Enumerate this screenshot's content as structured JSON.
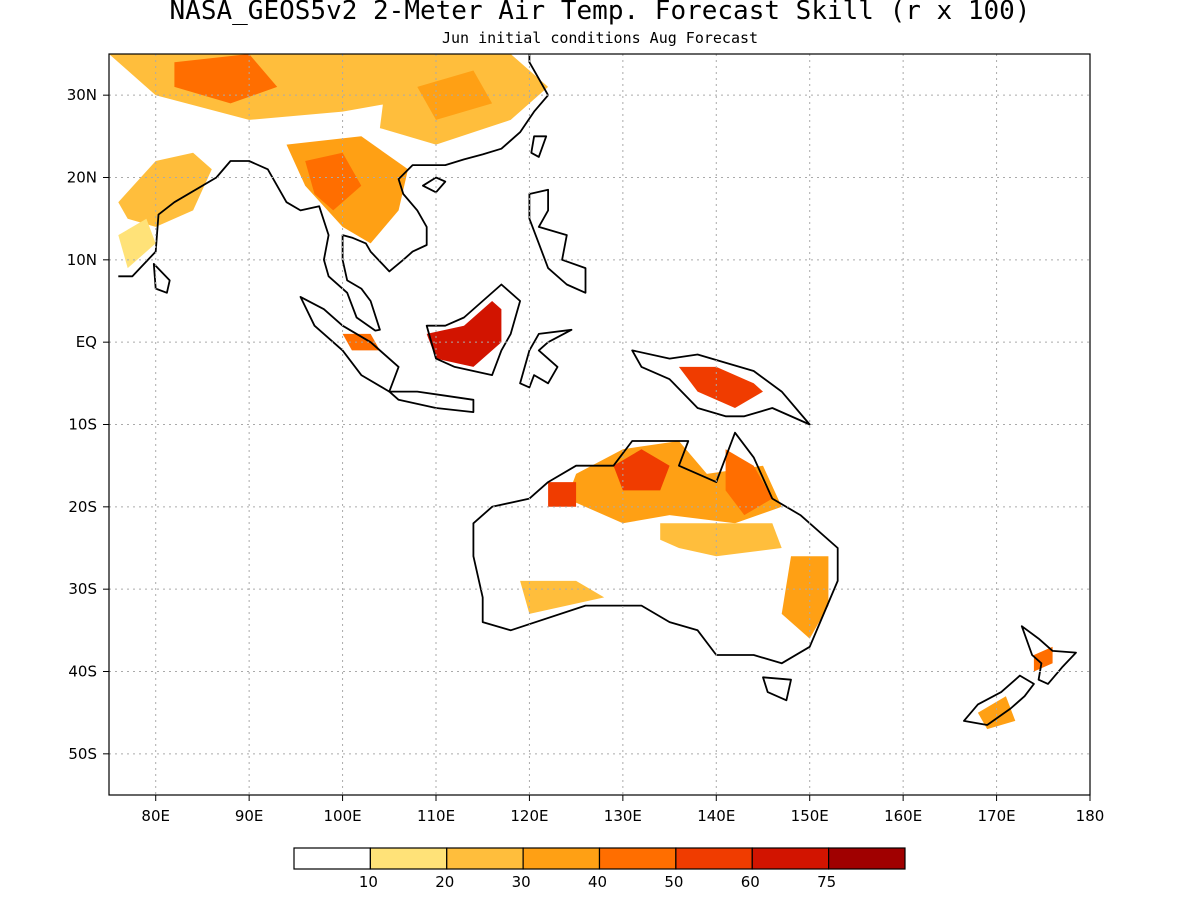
{
  "title": "NASA_GEOS5v2 2-Meter Air Temp. Forecast Skill (r x 100)",
  "subtitle": "Jun initial conditions  Aug Forecast",
  "map": {
    "lon_range": [
      75,
      180
    ],
    "lat_range": [
      -55,
      35
    ],
    "x_ticks": [
      {
        "lon": 80,
        "label": "80E"
      },
      {
        "lon": 90,
        "label": "90E"
      },
      {
        "lon": 100,
        "label": "100E"
      },
      {
        "lon": 110,
        "label": "110E"
      },
      {
        "lon": 120,
        "label": "120E"
      },
      {
        "lon": 130,
        "label": "130E"
      },
      {
        "lon": 140,
        "label": "140E"
      },
      {
        "lon": 150,
        "label": "150E"
      },
      {
        "lon": 160,
        "label": "160E"
      },
      {
        "lon": 170,
        "label": "170E"
      },
      {
        "lon": 180,
        "label": "180"
      }
    ],
    "y_ticks": [
      {
        "lat": 30,
        "label": "30N"
      },
      {
        "lat": 20,
        "label": "20N"
      },
      {
        "lat": 10,
        "label": "10N"
      },
      {
        "lat": 0,
        "label": "EQ"
      },
      {
        "lat": -10,
        "label": "10S"
      },
      {
        "lat": -20,
        "label": "20S"
      },
      {
        "lat": -30,
        "label": "30S"
      },
      {
        "lat": -40,
        "label": "40S"
      },
      {
        "lat": -50,
        "label": "50S"
      }
    ],
    "grid": "dotted"
  },
  "colorbar": {
    "colors": [
      "#ffffff",
      "#ffe278",
      "#ffbe3c",
      "#ffa014",
      "#ff6e00",
      "#f03c00",
      "#d21400",
      "#a00000"
    ],
    "labels": [
      "10",
      "20",
      "30",
      "40",
      "50",
      "60",
      "75"
    ]
  },
  "regions": [
    {
      "name": "india",
      "level": 2,
      "poly": [
        [
          76,
          17
        ],
        [
          80,
          22
        ],
        [
          84,
          23
        ],
        [
          86,
          21
        ],
        [
          84,
          16
        ],
        [
          80,
          14
        ],
        [
          77,
          15
        ]
      ]
    },
    {
      "name": "india-south",
      "level": 1,
      "poly": [
        [
          76,
          13
        ],
        [
          79,
          15
        ],
        [
          80,
          12
        ],
        [
          77,
          9
        ]
      ]
    },
    {
      "name": "tibet-north",
      "level": 2,
      "poly": [
        [
          75,
          35
        ],
        [
          105,
          35
        ],
        [
          110,
          30
        ],
        [
          100,
          28
        ],
        [
          90,
          27
        ],
        [
          80,
          30
        ]
      ]
    },
    {
      "name": "tibet-hot",
      "level": 4,
      "poly": [
        [
          82,
          34
        ],
        [
          90,
          35
        ],
        [
          93,
          31
        ],
        [
          88,
          29
        ],
        [
          82,
          31
        ]
      ]
    },
    {
      "name": "china-east",
      "level": 2,
      "poly": [
        [
          105,
          35
        ],
        [
          118,
          35
        ],
        [
          122,
          31
        ],
        [
          118,
          27
        ],
        [
          110,
          24
        ],
        [
          104,
          26
        ]
      ]
    },
    {
      "name": "china-east-core",
      "level": 3,
      "poly": [
        [
          108,
          31
        ],
        [
          114,
          33
        ],
        [
          116,
          29
        ],
        [
          110,
          27
        ]
      ]
    },
    {
      "name": "indochina",
      "level": 3,
      "poly": [
        [
          94,
          24
        ],
        [
          102,
          25
        ],
        [
          107,
          21
        ],
        [
          106,
          16
        ],
        [
          103,
          12
        ],
        [
          100,
          14
        ],
        [
          96,
          19
        ]
      ]
    },
    {
      "name": "indochina-core",
      "level": 4,
      "poly": [
        [
          96,
          22
        ],
        [
          100,
          23
        ],
        [
          102,
          19
        ],
        [
          99,
          16
        ],
        [
          97,
          18
        ]
      ]
    },
    {
      "name": "borneo",
      "level": 6,
      "poly": [
        [
          109,
          1
        ],
        [
          113,
          2
        ],
        [
          116,
          5
        ],
        [
          117,
          4
        ],
        [
          117,
          0
        ],
        [
          114,
          -3
        ],
        [
          110,
          -2
        ]
      ]
    },
    {
      "name": "sumatra",
      "level": 4,
      "poly": [
        [
          100,
          1
        ],
        [
          103,
          1
        ],
        [
          104,
          -1
        ],
        [
          101,
          -1
        ]
      ]
    },
    {
      "name": "new-guinea",
      "level": 5,
      "poly": [
        [
          136,
          -3
        ],
        [
          140,
          -3
        ],
        [
          144,
          -5
        ],
        [
          145,
          -6
        ],
        [
          142,
          -8
        ],
        [
          138,
          -6
        ]
      ]
    },
    {
      "name": "australia-north",
      "level": 3,
      "poly": [
        [
          125,
          -16
        ],
        [
          130,
          -13
        ],
        [
          136,
          -12
        ],
        [
          139,
          -16
        ],
        [
          145,
          -15
        ],
        [
          147,
          -20
        ],
        [
          142,
          -22
        ],
        [
          135,
          -21
        ],
        [
          130,
          -22
        ],
        [
          124,
          -19
        ]
      ]
    },
    {
      "name": "australia-north-core",
      "level": 5,
      "poly": [
        [
          129,
          -15
        ],
        [
          132,
          -13
        ],
        [
          135,
          -15
        ],
        [
          134,
          -18
        ],
        [
          130,
          -18
        ]
      ]
    },
    {
      "name": "australia-ne",
      "level": 4,
      "poly": [
        [
          141,
          -13
        ],
        [
          144,
          -15
        ],
        [
          146,
          -19
        ],
        [
          143,
          -21
        ],
        [
          141,
          -18
        ]
      ]
    },
    {
      "name": "australia-nw",
      "level": 5,
      "poly": [
        [
          122,
          -17
        ],
        [
          125,
          -17
        ],
        [
          125,
          -20
        ],
        [
          122,
          -20
        ]
      ]
    },
    {
      "name": "australia-central",
      "level": 2,
      "poly": [
        [
          134,
          -22
        ],
        [
          140,
          -22
        ],
        [
          146,
          -22
        ],
        [
          147,
          -25
        ],
        [
          140,
          -26
        ],
        [
          136,
          -25
        ],
        [
          134,
          -24
        ]
      ]
    },
    {
      "name": "australia-south",
      "level": 2,
      "poly": [
        [
          119,
          -29
        ],
        [
          125,
          -29
        ],
        [
          128,
          -31
        ],
        [
          124,
          -32
        ],
        [
          120,
          -33
        ]
      ]
    },
    {
      "name": "australia-east",
      "level": 3,
      "poly": [
        [
          148,
          -26
        ],
        [
          152,
          -26
        ],
        [
          152,
          -32
        ],
        [
          150,
          -36
        ],
        [
          147,
          -33
        ]
      ]
    },
    {
      "name": "new-zealand",
      "level": 3,
      "poly": [
        [
          168,
          -45
        ],
        [
          171,
          -43
        ],
        [
          172,
          -46
        ],
        [
          169,
          -47
        ]
      ]
    },
    {
      "name": "nz-north",
      "level": 4,
      "poly": [
        [
          174,
          -38
        ],
        [
          176,
          -37
        ],
        [
          176,
          -39
        ],
        [
          174,
          -40
        ]
      ]
    }
  ],
  "coasts": [
    {
      "name": "australia",
      "poly": [
        [
          114,
          -22
        ],
        [
          116,
          -20
        ],
        [
          120,
          -19
        ],
        [
          122,
          -17
        ],
        [
          125,
          -15
        ],
        [
          129,
          -15
        ],
        [
          131,
          -12
        ],
        [
          137,
          -12
        ],
        [
          136,
          -15
        ],
        [
          140,
          -17
        ],
        [
          142,
          -11
        ],
        [
          144,
          -14
        ],
        [
          146,
          -19
        ],
        [
          149,
          -21
        ],
        [
          153,
          -25
        ],
        [
          153,
          -29
        ],
        [
          150,
          -37
        ],
        [
          147,
          -39
        ],
        [
          144,
          -38
        ],
        [
          140,
          -38
        ],
        [
          138,
          -35
        ],
        [
          135,
          -34
        ],
        [
          132,
          -32
        ],
        [
          126,
          -32
        ],
        [
          118,
          -35
        ],
        [
          115,
          -34
        ],
        [
          115,
          -31
        ],
        [
          114,
          -26
        ]
      ]
    },
    {
      "name": "tasmania",
      "poly": [
        [
          145,
          -40.7
        ],
        [
          148,
          -41
        ],
        [
          147.5,
          -43.5
        ],
        [
          145.5,
          -42.5
        ]
      ]
    },
    {
      "name": "new-guinea",
      "poly": [
        [
          131,
          -1
        ],
        [
          135,
          -2
        ],
        [
          138,
          -1.5
        ],
        [
          141,
          -2.5
        ],
        [
          144,
          -3.5
        ],
        [
          147,
          -6
        ],
        [
          150,
          -10
        ],
        [
          146,
          -8
        ],
        [
          143,
          -9
        ],
        [
          141,
          -9
        ],
        [
          138,
          -8
        ],
        [
          135,
          -4.5
        ],
        [
          132,
          -3
        ]
      ]
    },
    {
      "name": "borneo",
      "poly": [
        [
          109,
          2
        ],
        [
          111,
          2
        ],
        [
          113,
          3
        ],
        [
          115,
          5
        ],
        [
          117,
          7
        ],
        [
          119,
          5
        ],
        [
          118,
          1
        ],
        [
          117,
          -1
        ],
        [
          116,
          -4
        ],
        [
          112,
          -3
        ],
        [
          110,
          -2
        ]
      ]
    },
    {
      "name": "sumatra",
      "poly": [
        [
          95.5,
          5.5
        ],
        [
          98,
          4
        ],
        [
          100,
          2
        ],
        [
          103,
          0
        ],
        [
          106,
          -3
        ],
        [
          105,
          -6
        ],
        [
          102,
          -4
        ],
        [
          100,
          -1
        ],
        [
          97,
          2
        ]
      ]
    },
    {
      "name": "java",
      "poly": [
        [
          105,
          -6
        ],
        [
          108,
          -6
        ],
        [
          111,
          -6.5
        ],
        [
          114,
          -7
        ],
        [
          114,
          -8.5
        ],
        [
          110,
          -8
        ],
        [
          106,
          -7
        ]
      ]
    },
    {
      "name": "sulawesi",
      "poly": [
        [
          119,
          -5
        ],
        [
          120,
          -1
        ],
        [
          121,
          1
        ],
        [
          124.5,
          1.5
        ],
        [
          122,
          0
        ],
        [
          121,
          -1
        ],
        [
          123,
          -3
        ],
        [
          122,
          -5
        ],
        [
          120.5,
          -4
        ],
        [
          120,
          -5.5
        ]
      ]
    },
    {
      "name": "philippines",
      "poly": [
        [
          120,
          18
        ],
        [
          122,
          18.5
        ],
        [
          122,
          16
        ],
        [
          121,
          14
        ],
        [
          124,
          13
        ],
        [
          123.5,
          10
        ],
        [
          126,
          9
        ],
        [
          126,
          6
        ],
        [
          124,
          7
        ],
        [
          122,
          9
        ],
        [
          121,
          12
        ],
        [
          120,
          15
        ]
      ]
    },
    {
      "name": "taiwan",
      "poly": [
        [
          120.5,
          25
        ],
        [
          121.8,
          25
        ],
        [
          121,
          22.5
        ],
        [
          120.2,
          23
        ]
      ]
    },
    {
      "name": "hainan",
      "poly": [
        [
          108.6,
          19
        ],
        [
          110,
          20
        ],
        [
          111,
          19.5
        ],
        [
          110,
          18.2
        ]
      ]
    },
    {
      "name": "sri-lanka",
      "poly": [
        [
          79.8,
          9.5
        ],
        [
          81.5,
          7.5
        ],
        [
          81.2,
          6
        ],
        [
          80,
          6.5
        ]
      ]
    },
    {
      "name": "nz-north",
      "poly": [
        [
          172.7,
          -34.5
        ],
        [
          174.5,
          -36
        ],
        [
          176,
          -37.5
        ],
        [
          178.5,
          -37.7
        ],
        [
          177,
          -39.5
        ],
        [
          175.5,
          -41.5
        ],
        [
          174.5,
          -41
        ],
        [
          174.8,
          -39
        ],
        [
          173.8,
          -38
        ]
      ]
    },
    {
      "name": "nz-south",
      "poly": [
        [
          172.5,
          -40.5
        ],
        [
          174,
          -41.5
        ],
        [
          173,
          -43
        ],
        [
          171.5,
          -44.5
        ],
        [
          169,
          -46.5
        ],
        [
          166.5,
          -46
        ],
        [
          168,
          -44
        ],
        [
          170.5,
          -42.5
        ]
      ]
    },
    {
      "name": "asia-mainland",
      "poly": [
        [
          76,
          8
        ],
        [
          77.5,
          8
        ],
        [
          80,
          11
        ],
        [
          80.3,
          15.5
        ],
        [
          82,
          17
        ],
        [
          86.5,
          20
        ],
        [
          88,
          22
        ],
        [
          90,
          22
        ],
        [
          92,
          21
        ],
        [
          94,
          17
        ],
        [
          95.5,
          16
        ],
        [
          97.5,
          16.5
        ],
        [
          98.5,
          13
        ],
        [
          98,
          10
        ],
        [
          98.5,
          8
        ],
        [
          100.5,
          6
        ],
        [
          101.5,
          3
        ],
        [
          103.5,
          1.4
        ],
        [
          104,
          1.5
        ],
        [
          103,
          5
        ],
        [
          102,
          6.5
        ],
        [
          100.5,
          7.5
        ],
        [
          100,
          10
        ],
        [
          100,
          13
        ],
        [
          101,
          12.7
        ],
        [
          102.5,
          12
        ],
        [
          103,
          11
        ],
        [
          105,
          8.6
        ],
        [
          106.5,
          10
        ],
        [
          107.5,
          11
        ],
        [
          109,
          11.8
        ],
        [
          109,
          14
        ],
        [
          108,
          16
        ],
        [
          106.5,
          18
        ],
        [
          106,
          19.8
        ],
        [
          107.5,
          21.5
        ],
        [
          109.5,
          21.5
        ],
        [
          111,
          21.5
        ],
        [
          113,
          22.2
        ],
        [
          115,
          22.8
        ],
        [
          117,
          23.5
        ],
        [
          119,
          25.5
        ],
        [
          120.5,
          28
        ],
        [
          122,
          30
        ],
        [
          121,
          32
        ],
        [
          120,
          34
        ],
        [
          120,
          35
        ]
      ]
    }
  ]
}
